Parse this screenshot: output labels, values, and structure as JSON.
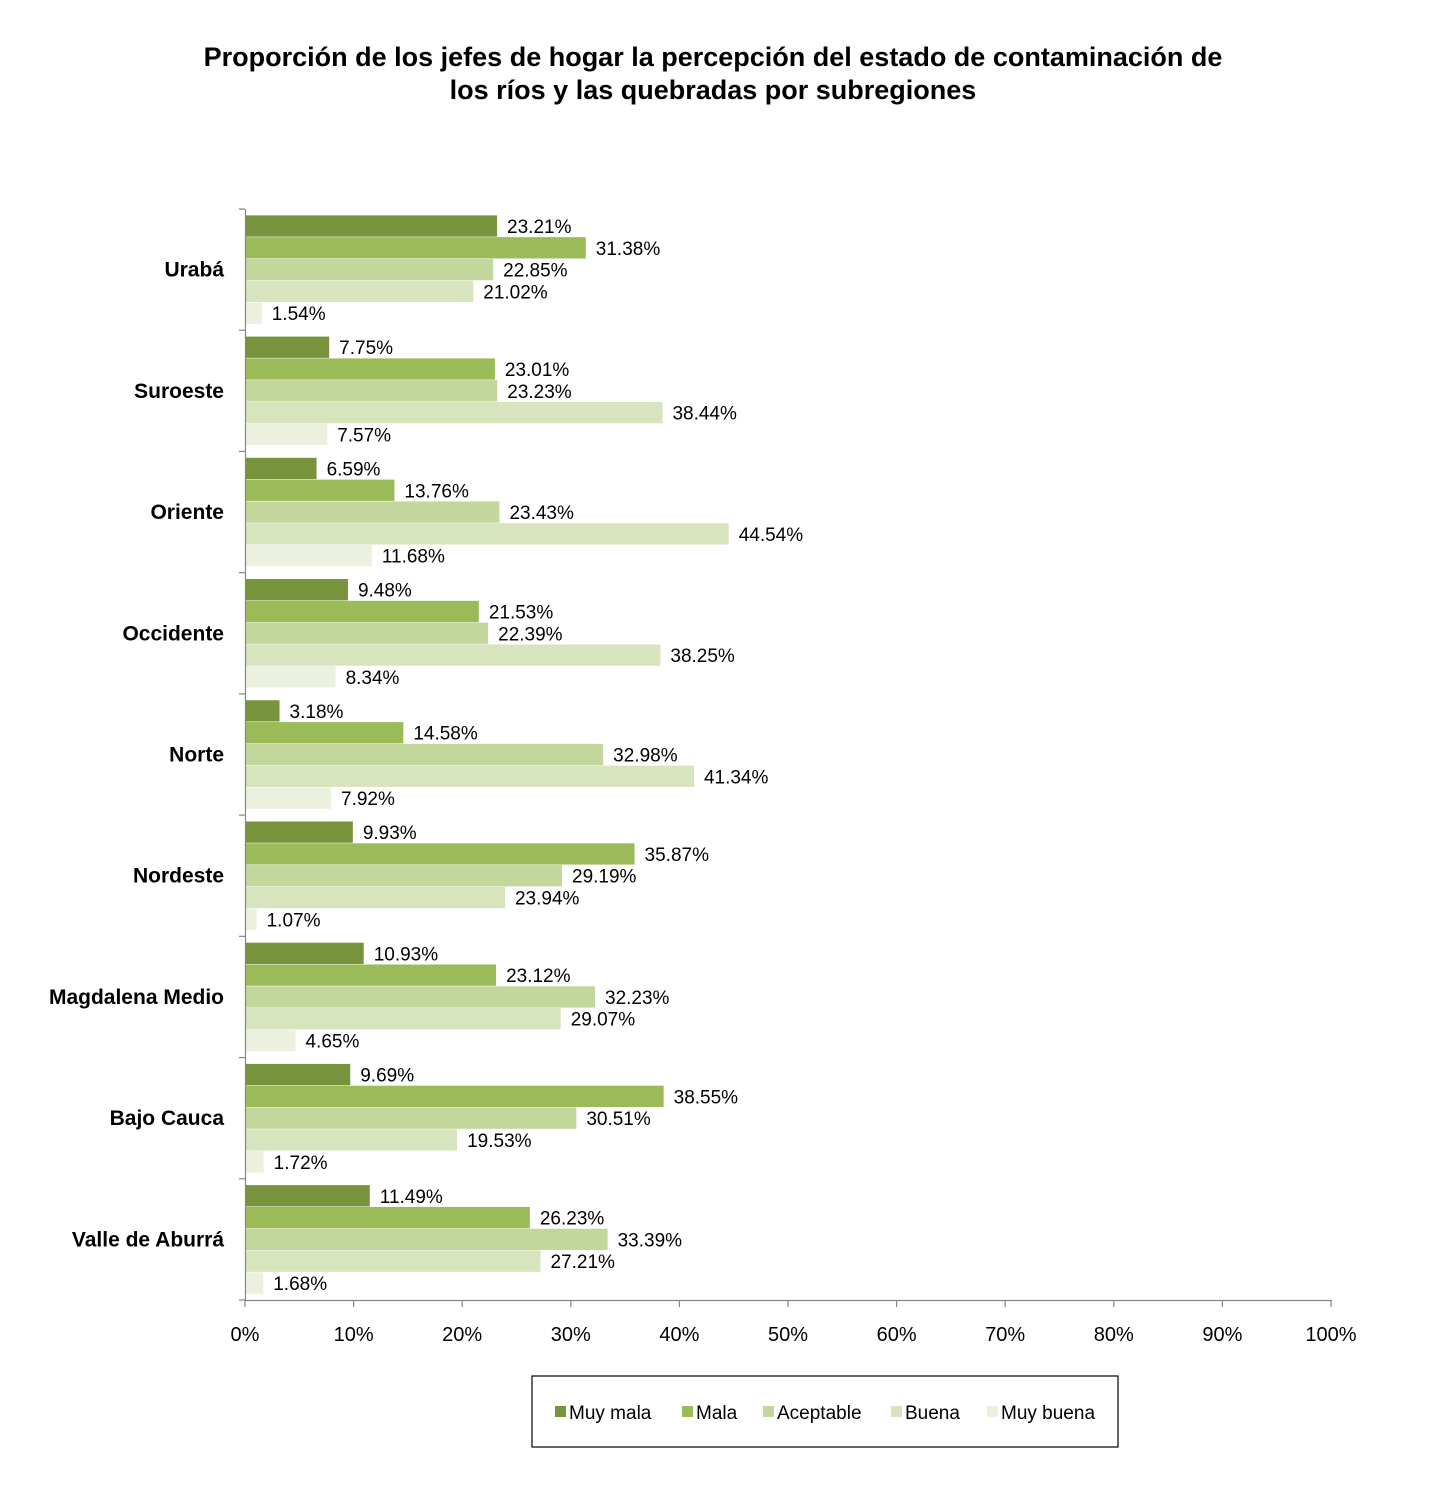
{
  "chart_data": {
    "type": "bar",
    "orientation": "horizontal",
    "title": [
      "Proporción de los jefes de  hogar la percepción del estado de contaminación de",
      "los ríos y las quebradas por subregiones"
    ],
    "categories": [
      "Urabá",
      "Suroeste",
      "Oriente",
      "Occidente",
      "Norte",
      "Nordeste",
      "Magdalena Medio",
      "Bajo Cauca",
      "Valle de Aburrá"
    ],
    "series": [
      {
        "name": "Muy mala",
        "color": "#77933c",
        "values": [
          23.21,
          7.75,
          6.59,
          9.48,
          3.18,
          9.93,
          10.93,
          9.69,
          11.49
        ],
        "labels": [
          "23.21%",
          "7.75%",
          "6.59%",
          "9.48%",
          "3.18%",
          "9.93%",
          "10.93%",
          "9.69%",
          "11.49%"
        ]
      },
      {
        "name": "Mala",
        "color": "#9bbb59",
        "values": [
          31.38,
          23.01,
          13.76,
          21.53,
          14.58,
          35.87,
          23.12,
          38.55,
          26.23
        ],
        "labels": [
          "31.38%",
          "23.01%",
          "13.76%",
          "21.53%",
          "14.58%",
          "35.87%",
          "23.12%",
          "38.55%",
          "26.23%"
        ]
      },
      {
        "name": "Aceptable",
        "color": "#c3d69b",
        "values": [
          22.85,
          23.23,
          23.43,
          22.39,
          32.98,
          29.19,
          32.23,
          30.51,
          33.39
        ],
        "labels": [
          "22.85%",
          "23.23%",
          "23.43%",
          "22.39%",
          "32.98%",
          "29.19%",
          "32.23%",
          "30.51%",
          "33.39%"
        ]
      },
      {
        "name": "Buena",
        "color": "#d7e4bd",
        "values": [
          21.02,
          38.44,
          44.54,
          38.25,
          41.34,
          23.94,
          29.07,
          19.53,
          27.21
        ],
        "labels": [
          "21.02%",
          "38.44%",
          "44.54%",
          "38.25%",
          "41.34%",
          "23.94%",
          "29.07%",
          "19.53%",
          "27.21%"
        ]
      },
      {
        "name": "Muy buena",
        "color": "#ebf1de",
        "values": [
          1.54,
          7.57,
          11.68,
          8.34,
          7.92,
          1.07,
          4.65,
          1.72,
          1.68
        ],
        "labels": [
          "1.54%",
          "7.57%",
          "11.68%",
          "8.34%",
          "7.92%",
          "1.07%",
          "4.65%",
          "1.72%",
          "1.68%"
        ]
      }
    ],
    "x_ticks": [
      "0%",
      "10%",
      "20%",
      "30%",
      "40%",
      "50%",
      "60%",
      "70%",
      "80%",
      "90%",
      "100%"
    ],
    "xlim": [
      0,
      100
    ],
    "xlabel": "",
    "ylabel": "",
    "grid": false,
    "legend_position": "bottom"
  }
}
